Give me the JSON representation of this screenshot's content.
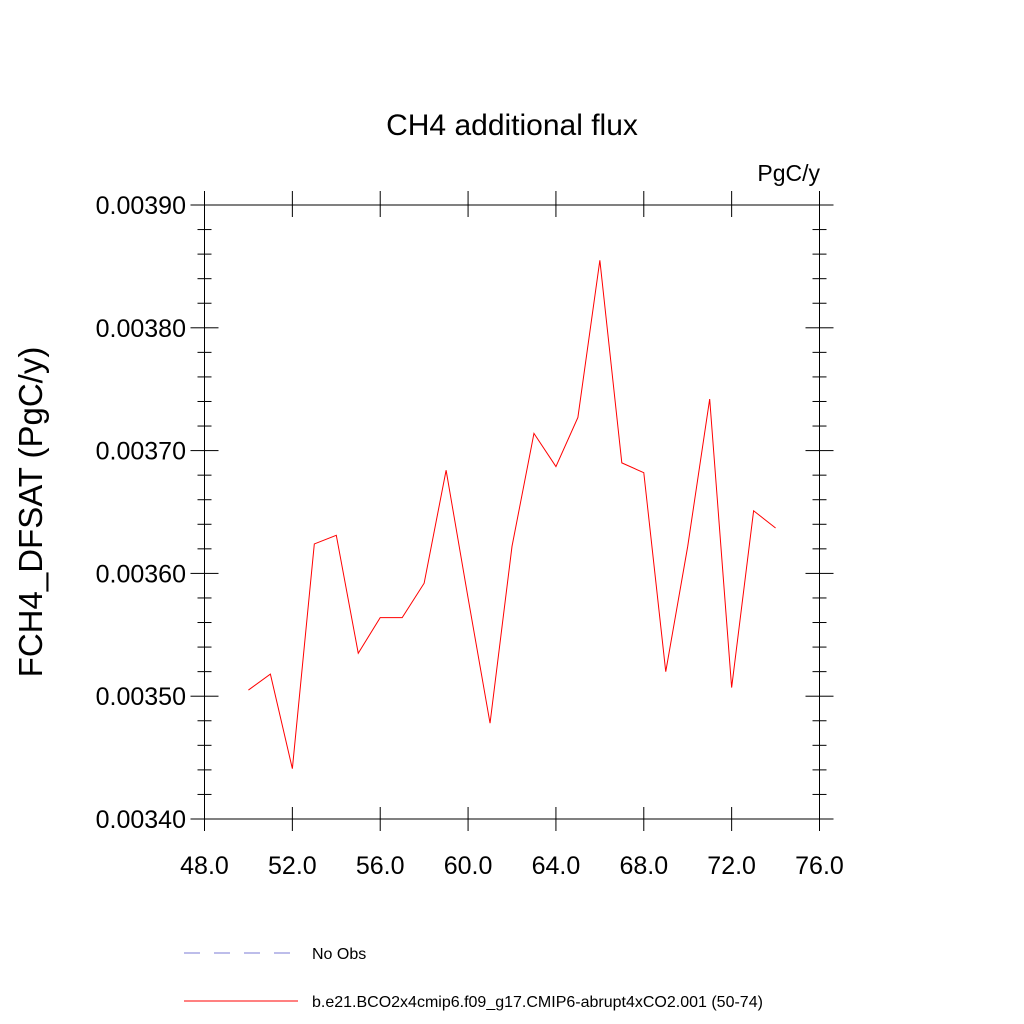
{
  "chart_data": {
    "type": "line",
    "title": "CH4 additional flux",
    "units": "PgC/y",
    "ylabel": "FCH4_DFSAT  (PgC/y)",
    "xlabel": "",
    "xlim": [
      48,
      76
    ],
    "ylim": [
      0.0034,
      0.0039
    ],
    "x_ticks": [
      48,
      52,
      56,
      60,
      64,
      68,
      72,
      76
    ],
    "x_tick_labels": [
      "48.0",
      "52.0",
      "56.0",
      "60.0",
      "64.0",
      "68.0",
      "72.0",
      "76.0"
    ],
    "y_ticks": [
      0.0034,
      0.0035,
      0.0036,
      0.0037,
      0.0038,
      0.0039
    ],
    "y_tick_labels": [
      "0.00340",
      "0.00350",
      "0.00360",
      "0.00370",
      "0.00380",
      "0.00390"
    ],
    "grid": false,
    "legend_position": "bottom",
    "series": [
      {
        "name": "b.e21.BCO2x4cmip6.f09_g17.CMIP6-abrupt4xCO2.001 (50-74)",
        "color": "#ff0000",
        "style": "solid",
        "x": [
          50,
          51,
          52,
          53,
          54,
          55,
          56,
          57,
          58,
          59,
          60,
          61,
          62,
          63,
          64,
          65,
          66,
          67,
          68,
          69,
          70,
          71,
          72,
          73,
          74
        ],
        "y": [
          0.003505,
          0.003518,
          0.003441,
          0.003624,
          0.003631,
          0.003535,
          0.003564,
          0.003564,
          0.003592,
          0.003684,
          0.00358,
          0.003478,
          0.003622,
          0.003714,
          0.003687,
          0.003727,
          0.003855,
          0.00369,
          0.003682,
          0.00352,
          0.003622,
          0.003742,
          0.003507,
          0.003651,
          0.003637
        ]
      },
      {
        "name": "No Obs",
        "color": "#7b7bd6",
        "style": "dashed",
        "x": [],
        "y": []
      }
    ]
  }
}
